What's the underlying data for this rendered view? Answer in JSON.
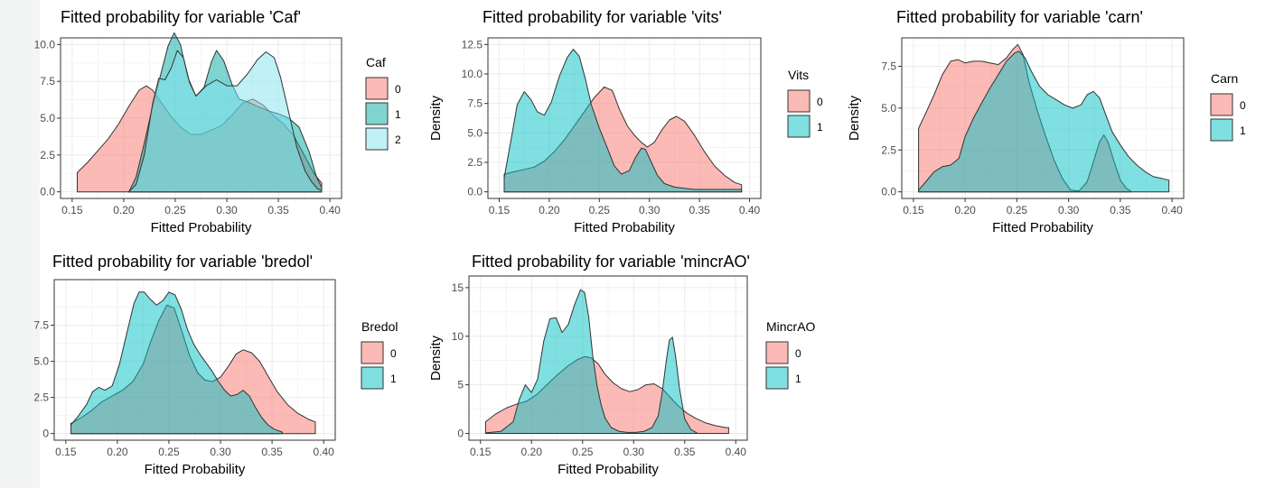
{
  "colors": {
    "c0": "#F8766D",
    "c1": "#00BFC4",
    "c2": "#7CAE00",
    "caf1": "#00A9A2",
    "caf2": "#7FE3F0"
  },
  "chart_data": [
    {
      "type": "area",
      "chart_kind": "density",
      "title": "Fitted probability for variable 'Caf'",
      "xlabel": "Fitted Probability",
      "ylabel": "",
      "xlim": [
        0.15,
        0.4
      ],
      "ylim": [
        0,
        10
      ],
      "xticks": [
        "0.15",
        "0.20",
        "0.25",
        "0.30",
        "0.35",
        "0.40"
      ],
      "yticks": [
        "0.0",
        "2.5",
        "5.0",
        "7.5",
        "10.0"
      ],
      "legend": {
        "title": "Caf",
        "labels": [
          "0",
          "1",
          "2"
        ]
      },
      "series": [
        {
          "name": "0",
          "color": "#F8766D",
          "x": [
            0.155,
            0.165,
            0.175,
            0.185,
            0.195,
            0.205,
            0.215,
            0.222,
            0.228,
            0.235,
            0.245,
            0.255,
            0.265,
            0.275,
            0.285,
            0.295,
            0.305,
            0.315,
            0.325,
            0.335,
            0.345,
            0.355,
            0.365,
            0.375,
            0.385,
            0.392
          ],
          "y": [
            1.3,
            2.0,
            2.8,
            3.6,
            4.6,
            5.8,
            6.9,
            7.2,
            6.9,
            6.2,
            5.2,
            4.4,
            3.9,
            3.9,
            4.2,
            4.5,
            5.2,
            6.0,
            6.3,
            5.9,
            5.2,
            4.6,
            3.8,
            2.5,
            1.2,
            0.6
          ]
        },
        {
          "name": "1",
          "color": "#00A9A2",
          "x": [
            0.205,
            0.212,
            0.22,
            0.228,
            0.236,
            0.243,
            0.249,
            0.255,
            0.262,
            0.27,
            0.278,
            0.285,
            0.29,
            0.297,
            0.305,
            0.312,
            0.32,
            0.33,
            0.34,
            0.35,
            0.36,
            0.37,
            0.38,
            0.387,
            0.392
          ],
          "y": [
            0,
            1.0,
            3.3,
            5.8,
            8.0,
            9.9,
            10.8,
            10.0,
            7.8,
            6.5,
            7.1,
            8.8,
            9.6,
            8.9,
            7.3,
            6.3,
            6.1,
            5.8,
            5.5,
            5.3,
            5.0,
            4.4,
            2.7,
            1.0,
            0.3
          ]
        },
        {
          "name": "2",
          "color": "#7FE3F0",
          "x": [
            0.205,
            0.212,
            0.22,
            0.228,
            0.234,
            0.24,
            0.246,
            0.252,
            0.258,
            0.264,
            0.27,
            0.28,
            0.29,
            0.3,
            0.31,
            0.32,
            0.33,
            0.338,
            0.346,
            0.352,
            0.36,
            0.368,
            0.376,
            0.382,
            0.388,
            0.392
          ],
          "y": [
            0,
            0.5,
            2.5,
            6.0,
            7.7,
            7.6,
            8.4,
            9.6,
            9.1,
            7.4,
            6.5,
            7.2,
            7.6,
            7.2,
            7.2,
            8.0,
            9.0,
            9.5,
            9.1,
            7.8,
            5.4,
            3.0,
            1.4,
            0.7,
            0.2,
            0.1
          ]
        }
      ]
    },
    {
      "type": "area",
      "chart_kind": "density",
      "title": "Fitted probability for variable 'vits'",
      "xlabel": "Fitted Probability",
      "ylabel": "Density",
      "xlim": [
        0.15,
        0.4
      ],
      "ylim": [
        0,
        12.5
      ],
      "xticks": [
        "0.15",
        "0.20",
        "0.25",
        "0.30",
        "0.35",
        "0.40"
      ],
      "yticks": [
        "0.0",
        "2.5",
        "5.0",
        "7.5",
        "10.0",
        "12.5"
      ],
      "legend": {
        "title": "Vits",
        "labels": [
          "0",
          "1"
        ]
      },
      "series": [
        {
          "name": "0",
          "color": "#F8766D",
          "x": [
            0.155,
            0.165,
            0.175,
            0.185,
            0.195,
            0.205,
            0.215,
            0.225,
            0.235,
            0.245,
            0.255,
            0.263,
            0.27,
            0.278,
            0.285,
            0.292,
            0.298,
            0.305,
            0.312,
            0.32,
            0.327,
            0.335,
            0.345,
            0.355,
            0.365,
            0.375,
            0.385,
            0.392
          ],
          "y": [
            1.5,
            1.7,
            1.9,
            2.1,
            2.6,
            3.4,
            4.4,
            5.6,
            6.8,
            8.0,
            8.9,
            8.6,
            7.0,
            5.6,
            4.8,
            4.2,
            3.8,
            4.2,
            5.2,
            6.1,
            6.4,
            6.0,
            4.8,
            3.4,
            2.2,
            1.4,
            0.8,
            0.6
          ]
        },
        {
          "name": "1",
          "color": "#00BFC4",
          "x": [
            0.155,
            0.162,
            0.168,
            0.175,
            0.182,
            0.188,
            0.195,
            0.202,
            0.21,
            0.218,
            0.224,
            0.23,
            0.236,
            0.242,
            0.25,
            0.258,
            0.265,
            0.272,
            0.28,
            0.286,
            0.292,
            0.296,
            0.302,
            0.308,
            0.315,
            0.325,
            0.335,
            0.345,
            0.355,
            0.365,
            0.375,
            0.385,
            0.392
          ],
          "y": [
            1.2,
            4.5,
            7.4,
            8.5,
            7.8,
            6.8,
            6.5,
            7.6,
            9.8,
            11.4,
            12.1,
            11.5,
            9.6,
            7.4,
            5.4,
            3.7,
            2.2,
            1.5,
            1.8,
            2.9,
            3.7,
            3.6,
            2.5,
            1.4,
            0.7,
            0.4,
            0.3,
            0.2,
            0.2,
            0.2,
            0.2,
            0.2,
            0.2
          ]
        }
      ]
    },
    {
      "type": "area",
      "chart_kind": "density",
      "title": "Fitted probability for variable 'carn'",
      "xlabel": "Fitted Probability",
      "ylabel": "Density",
      "xlim": [
        0.15,
        0.4
      ],
      "ylim": [
        0,
        8.8
      ],
      "xticks": [
        "0.15",
        "0.20",
        "0.25",
        "0.30",
        "0.35",
        "0.40"
      ],
      "yticks": [
        "0.0",
        "2.5",
        "5.0",
        "7.5"
      ],
      "legend": {
        "title": "Carn",
        "labels": [
          "0",
          "1"
        ]
      },
      "series": [
        {
          "name": "0",
          "color": "#F8766D",
          "x": [
            0.155,
            0.162,
            0.17,
            0.178,
            0.186,
            0.193,
            0.2,
            0.208,
            0.216,
            0.224,
            0.232,
            0.24,
            0.246,
            0.251,
            0.256,
            0.262,
            0.27,
            0.278,
            0.286,
            0.294,
            0.302,
            0.31,
            0.318,
            0.324,
            0.33,
            0.334,
            0.338,
            0.344,
            0.35,
            0.356,
            0.36
          ],
          "y": [
            3.8,
            4.7,
            5.8,
            7.0,
            7.8,
            7.9,
            7.7,
            7.8,
            7.8,
            7.7,
            7.6,
            8.0,
            8.5,
            8.8,
            8.2,
            6.5,
            4.8,
            3.3,
            1.9,
            0.8,
            0.1,
            0.05,
            0.6,
            1.8,
            3.0,
            3.4,
            3.0,
            1.8,
            0.7,
            0.2,
            0.05
          ]
        },
        {
          "name": "1",
          "color": "#00BFC4",
          "x": [
            0.155,
            0.162,
            0.17,
            0.178,
            0.186,
            0.194,
            0.2,
            0.208,
            0.216,
            0.224,
            0.232,
            0.24,
            0.248,
            0.252,
            0.258,
            0.264,
            0.272,
            0.28,
            0.288,
            0.296,
            0.304,
            0.312,
            0.318,
            0.324,
            0.33,
            0.336,
            0.342,
            0.35,
            0.358,
            0.366,
            0.374,
            0.382,
            0.39,
            0.397
          ],
          "y": [
            0.1,
            0.6,
            1.2,
            1.5,
            1.6,
            2.0,
            3.3,
            4.4,
            5.3,
            6.2,
            7.0,
            7.8,
            8.3,
            8.4,
            8.0,
            7.2,
            6.3,
            5.8,
            5.5,
            5.2,
            5.0,
            5.2,
            5.8,
            6.0,
            5.6,
            4.6,
            3.6,
            2.8,
            2.1,
            1.6,
            1.2,
            0.9,
            0.8,
            0.7
          ]
        }
      ]
    },
    {
      "type": "area",
      "chart_kind": "density",
      "title": "Fitted probability for variable 'bredol'",
      "xlabel": "Fitted Probability",
      "ylabel": "",
      "xlim": [
        0.15,
        0.4
      ],
      "ylim": [
        0,
        10.2
      ],
      "xticks": [
        "0.15",
        "0.20",
        "0.25",
        "0.30",
        "0.35",
        "0.40"
      ],
      "yticks": [
        "0",
        "2.5",
        "5.0",
        "7.5"
      ],
      "legend": {
        "title": "Bredol",
        "labels": [
          "0",
          "1"
        ]
      },
      "series": [
        {
          "name": "0",
          "color": "#F8766D",
          "x": [
            0.155,
            0.165,
            0.175,
            0.185,
            0.195,
            0.205,
            0.215,
            0.225,
            0.232,
            0.24,
            0.248,
            0.255,
            0.262,
            0.27,
            0.278,
            0.285,
            0.292,
            0.3,
            0.308,
            0.315,
            0.322,
            0.33,
            0.338,
            0.346,
            0.355,
            0.365,
            0.375,
            0.385,
            0.392
          ],
          "y": [
            0.7,
            1.1,
            1.6,
            2.2,
            2.6,
            3.0,
            3.6,
            4.8,
            6.3,
            7.8,
            8.9,
            8.7,
            7.2,
            5.4,
            4.2,
            3.7,
            3.6,
            3.9,
            4.7,
            5.5,
            5.8,
            5.6,
            5.0,
            4.0,
            2.9,
            2.0,
            1.4,
            1.0,
            0.8
          ]
        },
        {
          "name": "1",
          "color": "#00BFC4",
          "x": [
            0.155,
            0.162,
            0.17,
            0.176,
            0.182,
            0.188,
            0.195,
            0.202,
            0.21,
            0.216,
            0.221,
            0.226,
            0.232,
            0.238,
            0.244,
            0.25,
            0.256,
            0.262,
            0.268,
            0.274,
            0.28,
            0.286,
            0.292,
            0.298,
            0.304,
            0.31,
            0.316,
            0.322,
            0.328,
            0.334,
            0.34,
            0.346,
            0.352,
            0.36
          ],
          "y": [
            0.6,
            1.2,
            2.0,
            2.9,
            3.2,
            3.0,
            3.3,
            4.8,
            7.2,
            9.0,
            9.8,
            9.8,
            9.3,
            8.9,
            9.2,
            9.8,
            9.6,
            8.6,
            7.2,
            6.2,
            5.5,
            4.9,
            4.3,
            3.6,
            3.0,
            2.6,
            2.7,
            3.0,
            2.6,
            1.8,
            1.1,
            0.6,
            0.3,
            0.1
          ]
        }
      ]
    },
    {
      "type": "area",
      "chart_kind": "density",
      "title": "Fitted probability for variable 'mincrAO'",
      "xlabel": "Fitted Probability",
      "ylabel": "Density",
      "xlim": [
        0.15,
        0.4
      ],
      "ylim": [
        0,
        15.5
      ],
      "xticks": [
        "0.15",
        "0.20",
        "0.25",
        "0.30",
        "0.35",
        "0.40"
      ],
      "yticks": [
        "0",
        "5",
        "10",
        "15"
      ],
      "legend": {
        "title": "MincrAO",
        "labels": [
          "0",
          "1"
        ]
      },
      "series": [
        {
          "name": "0",
          "color": "#F8766D",
          "x": [
            0.155,
            0.165,
            0.175,
            0.185,
            0.195,
            0.205,
            0.215,
            0.225,
            0.235,
            0.245,
            0.252,
            0.258,
            0.265,
            0.272,
            0.28,
            0.288,
            0.296,
            0.304,
            0.312,
            0.32,
            0.328,
            0.336,
            0.344,
            0.352,
            0.36,
            0.37,
            0.38,
            0.39,
            0.393
          ],
          "y": [
            1.2,
            2.0,
            2.6,
            3.0,
            3.3,
            4.0,
            5.0,
            6.0,
            6.9,
            7.6,
            7.9,
            7.8,
            7.2,
            6.1,
            5.2,
            4.6,
            4.3,
            4.5,
            5.0,
            5.1,
            4.6,
            3.7,
            2.8,
            2.1,
            1.6,
            1.1,
            0.8,
            0.6,
            0.6
          ]
        },
        {
          "name": "1",
          "color": "#00BFC4",
          "x": [
            0.155,
            0.17,
            0.182,
            0.188,
            0.194,
            0.2,
            0.206,
            0.212,
            0.218,
            0.224,
            0.23,
            0.236,
            0.242,
            0.248,
            0.252,
            0.256,
            0.26,
            0.264,
            0.268,
            0.272,
            0.278,
            0.286,
            0.294,
            0.302,
            0.31,
            0.318,
            0.324,
            0.328,
            0.332,
            0.335,
            0.338,
            0.341,
            0.345,
            0.35,
            0.356,
            0.362
          ],
          "y": [
            0.05,
            0.2,
            1.2,
            3.5,
            5.0,
            4.2,
            5.6,
            9.5,
            11.8,
            11.9,
            10.4,
            11.2,
            13.2,
            14.8,
            14.5,
            12.0,
            8.0,
            5.0,
            3.0,
            1.6,
            0.6,
            0.2,
            0.1,
            0.1,
            0.2,
            0.6,
            1.8,
            4.2,
            7.5,
            9.6,
            9.9,
            8.0,
            4.6,
            1.5,
            0.4,
            0.05
          ]
        }
      ]
    }
  ]
}
